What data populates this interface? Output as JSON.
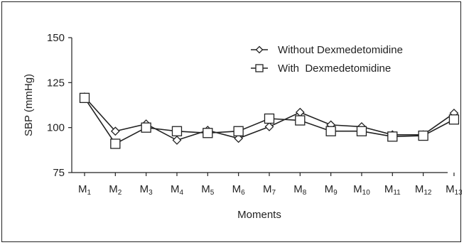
{
  "chart_data": {
    "type": "line",
    "title": "",
    "xlabel": "Moments",
    "ylabel": "SBP (mmHg)",
    "ylim": [
      75,
      150
    ],
    "yticks": [
      75,
      100,
      125,
      150
    ],
    "categories": [
      {
        "base": "M",
        "sub": "1"
      },
      {
        "base": "M",
        "sub": "2"
      },
      {
        "base": "M",
        "sub": "3"
      },
      {
        "base": "M",
        "sub": "4"
      },
      {
        "base": "M",
        "sub": "5"
      },
      {
        "base": "M",
        "sub": "6"
      },
      {
        "base": "M",
        "sub": "7"
      },
      {
        "base": "M",
        "sub": "8"
      },
      {
        "base": "M",
        "sub": "9"
      },
      {
        "base": "M",
        "sub": "10"
      },
      {
        "base": "M",
        "sub": "11"
      },
      {
        "base": "M",
        "sub": "12"
      },
      {
        "base": "M",
        "sub": "13"
      }
    ],
    "grid": false,
    "legend_position": "top-right",
    "series": [
      {
        "name": "Without Dexmedetomidine",
        "marker": "diamond",
        "values": [
          117,
          98,
          102,
          93,
          98.5,
          94,
          100.5,
          108.5,
          101.5,
          100.5,
          96,
          96,
          108
        ]
      },
      {
        "name": "With  Dexmedetomidine",
        "marker": "square",
        "values": [
          116.5,
          91,
          100,
          98,
          97,
          98,
          105,
          104,
          98,
          98,
          95,
          95.5,
          104.5
        ]
      }
    ]
  }
}
